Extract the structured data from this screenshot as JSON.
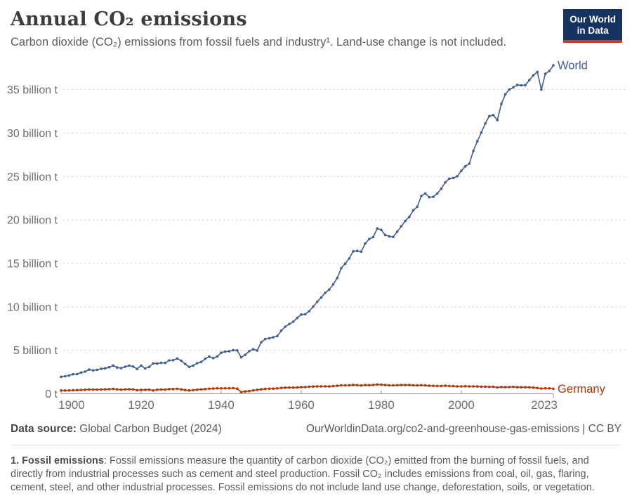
{
  "header": {
    "title": "Annual CO₂ emissions",
    "subtitle": "Carbon dioxide (CO₂) emissions from fossil fuels and industry¹. Land-use change is not included.",
    "logo": {
      "line1": "Our World",
      "line2": "in Data"
    }
  },
  "chart_data": {
    "type": "line",
    "title": "Annual CO₂ emissions",
    "xlabel": "",
    "ylabel": "",
    "ylim": [
      0,
      38
    ],
    "grid": "dashed horizontal",
    "legend_position": "end-of-line labels",
    "unit": "billion tonnes CO₂",
    "y_ticks": [
      {
        "value": 0,
        "label": "0 t"
      },
      {
        "value": 5,
        "label": "5 billion t"
      },
      {
        "value": 10,
        "label": "10 billion t"
      },
      {
        "value": 15,
        "label": "15 billion t"
      },
      {
        "value": 20,
        "label": "20 billion t"
      },
      {
        "value": 25,
        "label": "25 billion t"
      },
      {
        "value": 30,
        "label": "30 billion t"
      },
      {
        "value": 35,
        "label": "35 billion t"
      }
    ],
    "x_ticks": [
      {
        "year": 1900,
        "label": "1900"
      },
      {
        "year": 1920,
        "label": "1920"
      },
      {
        "year": 1940,
        "label": "1940"
      },
      {
        "year": 1960,
        "label": "1960"
      },
      {
        "year": 1980,
        "label": "1980"
      },
      {
        "year": 2000,
        "label": "2000"
      },
      {
        "year": 2023,
        "label": "2023"
      }
    ],
    "years": [
      1900,
      1901,
      1902,
      1903,
      1904,
      1905,
      1906,
      1907,
      1908,
      1909,
      1910,
      1911,
      1912,
      1913,
      1914,
      1915,
      1916,
      1917,
      1918,
      1919,
      1920,
      1921,
      1922,
      1923,
      1924,
      1925,
      1926,
      1927,
      1928,
      1929,
      1930,
      1931,
      1932,
      1933,
      1934,
      1935,
      1936,
      1937,
      1938,
      1939,
      1940,
      1941,
      1942,
      1943,
      1944,
      1945,
      1946,
      1947,
      1948,
      1949,
      1950,
      1951,
      1952,
      1953,
      1954,
      1955,
      1956,
      1957,
      1958,
      1959,
      1960,
      1961,
      1962,
      1963,
      1964,
      1965,
      1966,
      1967,
      1968,
      1969,
      1970,
      1971,
      1972,
      1973,
      1974,
      1975,
      1976,
      1977,
      1978,
      1979,
      1980,
      1981,
      1982,
      1983,
      1984,
      1985,
      1986,
      1987,
      1988,
      1989,
      1990,
      1991,
      1992,
      1993,
      1994,
      1995,
      1996,
      1997,
      1998,
      1999,
      2000,
      2001,
      2002,
      2003,
      2004,
      2005,
      2006,
      2007,
      2008,
      2009,
      2010,
      2011,
      2012,
      2013,
      2014,
      2015,
      2016,
      2017,
      2018,
      2019,
      2020,
      2021,
      2022,
      2023
    ],
    "series": [
      {
        "name": "World",
        "color": "#415e92",
        "values": [
          1.95,
          2.02,
          2.1,
          2.25,
          2.26,
          2.44,
          2.55,
          2.78,
          2.69,
          2.76,
          2.88,
          2.93,
          3.05,
          3.25,
          3.02,
          2.95,
          3.11,
          3.23,
          3.14,
          2.85,
          3.24,
          2.91,
          3.1,
          3.49,
          3.47,
          3.56,
          3.55,
          3.84,
          3.86,
          4.06,
          3.81,
          3.43,
          3.09,
          3.24,
          3.52,
          3.66,
          4.03,
          4.28,
          4.1,
          4.29,
          4.72,
          4.85,
          4.88,
          5.02,
          4.99,
          4.2,
          4.48,
          4.9,
          5.12,
          4.98,
          5.93,
          6.3,
          6.39,
          6.5,
          6.63,
          7.26,
          7.72,
          8.02,
          8.29,
          8.72,
          9.12,
          9.15,
          9.5,
          10.03,
          10.58,
          11.07,
          11.62,
          11.98,
          12.59,
          13.32,
          14.45,
          14.98,
          15.57,
          16.4,
          16.44,
          16.36,
          17.29,
          17.8,
          18.03,
          19.02,
          18.86,
          18.26,
          18.12,
          18.05,
          18.66,
          19.27,
          19.88,
          20.35,
          21.11,
          21.52,
          22.75,
          23.06,
          22.62,
          22.66,
          23.05,
          23.6,
          24.33,
          24.76,
          24.83,
          25.04,
          25.65,
          26.18,
          26.48,
          27.94,
          29.06,
          30.06,
          31.1,
          31.95,
          32.07,
          31.49,
          33.34,
          34.46,
          35.02,
          35.27,
          35.54,
          35.5,
          35.52,
          36.1,
          36.65,
          37.04,
          35.01,
          36.82,
          37.15,
          37.79
        ]
      },
      {
        "name": "Germany",
        "color": "#b13507",
        "values": [
          0.38,
          0.38,
          0.39,
          0.41,
          0.42,
          0.44,
          0.46,
          0.49,
          0.48,
          0.48,
          0.49,
          0.51,
          0.53,
          0.56,
          0.5,
          0.47,
          0.5,
          0.52,
          0.5,
          0.41,
          0.45,
          0.45,
          0.47,
          0.38,
          0.46,
          0.49,
          0.48,
          0.54,
          0.54,
          0.57,
          0.5,
          0.43,
          0.39,
          0.42,
          0.47,
          0.5,
          0.54,
          0.58,
          0.6,
          0.63,
          0.62,
          0.63,
          0.63,
          0.65,
          0.59,
          0.19,
          0.27,
          0.31,
          0.39,
          0.45,
          0.51,
          0.56,
          0.58,
          0.59,
          0.62,
          0.67,
          0.7,
          0.71,
          0.71,
          0.72,
          0.76,
          0.77,
          0.8,
          0.83,
          0.84,
          0.85,
          0.86,
          0.84,
          0.88,
          0.92,
          0.97,
          0.97,
          0.98,
          1.02,
          0.99,
          0.95,
          1.0,
          0.99,
          1.02,
          1.07,
          1.04,
          1.0,
          0.97,
          0.97,
          0.99,
          1.0,
          1.0,
          1.0,
          0.98,
          0.96,
          0.99,
          0.96,
          0.92,
          0.91,
          0.9,
          0.9,
          0.92,
          0.89,
          0.88,
          0.85,
          0.85,
          0.87,
          0.85,
          0.85,
          0.84,
          0.81,
          0.82,
          0.79,
          0.8,
          0.73,
          0.78,
          0.76,
          0.77,
          0.79,
          0.75,
          0.75,
          0.75,
          0.74,
          0.71,
          0.66,
          0.6,
          0.63,
          0.62,
          0.58
        ]
      }
    ]
  },
  "footer": {
    "source_label": "Data source:",
    "source_value": "Global Carbon Budget (2024)",
    "credit": "OurWorldinData.org/co2-and-greenhouse-gas-emissions | CC BY"
  },
  "footnote": {
    "label": "1. Fossil emissions",
    "text": ": Fossil emissions measure the quantity of carbon dioxide (CO₂) emitted from the burning of fossil fuels, and directly from industrial processes such as cement and steel production. Fossil CO₂ includes emissions from coal, oil, gas, flaring, cement, steel, and other industrial processes. Fossil emissions do not include land use change, deforestation, soils, or vegetation."
  }
}
